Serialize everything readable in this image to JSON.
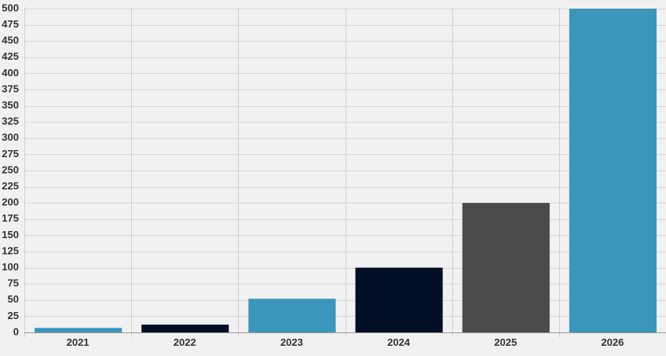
{
  "chart_data": {
    "type": "bar",
    "title": "",
    "xlabel": "",
    "ylabel": "",
    "categories": [
      "2021",
      "2022",
      "2023",
      "2024",
      "2025",
      "2026"
    ],
    "values": [
      7,
      12,
      52,
      100,
      200,
      500
    ],
    "colors": [
      "#3a97bb",
      "#020f26",
      "#3a97bb",
      "#020f26",
      "#4a4a4a",
      "#3a97bb"
    ],
    "ylim": [
      0,
      500
    ],
    "yticks": [
      0,
      25,
      50,
      75,
      100,
      125,
      150,
      175,
      200,
      225,
      250,
      275,
      300,
      325,
      350,
      375,
      400,
      425,
      450,
      475,
      500
    ],
    "grid": true,
    "legend": "none"
  }
}
